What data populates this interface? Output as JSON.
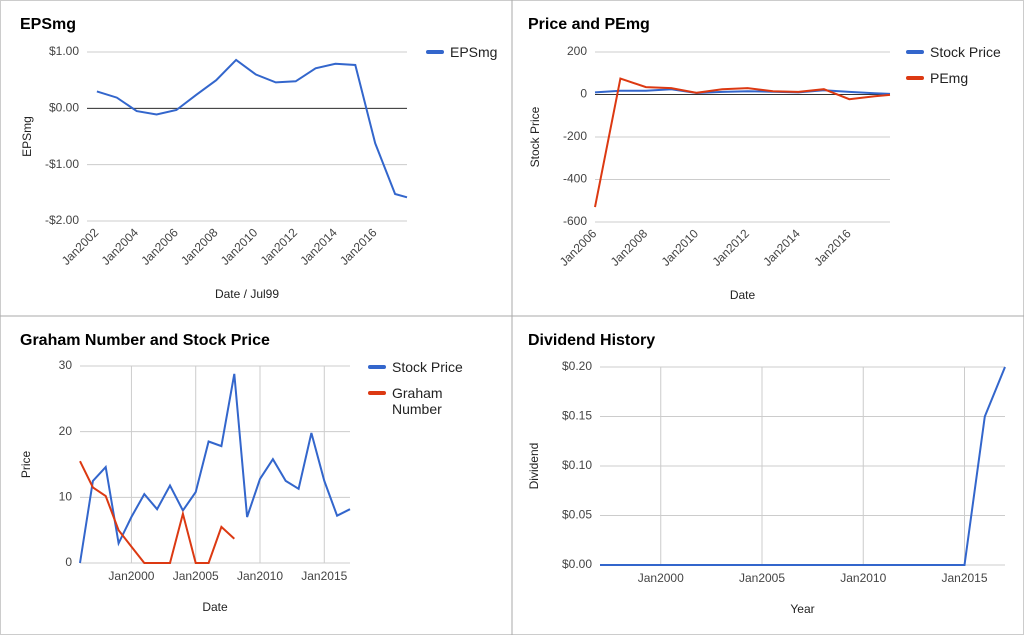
{
  "chart_data": [
    {
      "type": "line",
      "title": "EPSmg",
      "x_label": "Date / Jul99",
      "y_label": "EPSmg",
      "x": [
        2002,
        2003,
        2004,
        2005,
        2006,
        2007,
        2008,
        2009,
        2010,
        2011,
        2012,
        2013,
        2014,
        2015,
        2016,
        2017,
        2017.6
      ],
      "series": [
        {
          "name": "EPSmg",
          "color": "#3366cc",
          "values": [
            0.3,
            0.19,
            -0.05,
            -0.11,
            -0.03,
            0.24,
            0.5,
            0.86,
            0.6,
            0.46,
            0.48,
            0.71,
            0.79,
            0.77,
            -0.62,
            -1.52,
            -1.58
          ]
        }
      ],
      "xlim": [
        2001.5,
        2017.6
      ],
      "xticks": [
        {
          "value": 2002,
          "label": "Jan2002"
        },
        {
          "value": 2004,
          "label": "Jan2004"
        },
        {
          "value": 2006,
          "label": "Jan2006"
        },
        {
          "value": 2008,
          "label": "Jan2008"
        },
        {
          "value": 2010,
          "label": "Jan2010"
        },
        {
          "value": 2012,
          "label": "Jan2012"
        },
        {
          "value": 2014,
          "label": "Jan2014"
        },
        {
          "value": 2016,
          "label": "Jan2016"
        }
      ],
      "ylim": [
        -2,
        1
      ],
      "yticks": [
        {
          "value": 1,
          "label": "$1.00"
        },
        {
          "value": 0,
          "label": "$0.00"
        },
        {
          "value": -1,
          "label": "-$1.00"
        },
        {
          "value": -2,
          "label": "-$2.00"
        }
      ],
      "grid": true,
      "xgrid": false,
      "rotate_x_labels": true,
      "legend": "right"
    },
    {
      "type": "line",
      "title": "Price and PEmg",
      "x_label": "Date",
      "y_label": "Stock Price",
      "x": [
        2006,
        2007,
        2008,
        2009,
        2010,
        2011,
        2012,
        2013,
        2014,
        2015,
        2016,
        2017,
        2017.6
      ],
      "series": [
        {
          "name": "Stock Price",
          "color": "#3366cc",
          "values": [
            10,
            18,
            18,
            25,
            7,
            12,
            15,
            13,
            10,
            20,
            12,
            6,
            3
          ]
        },
        {
          "name": "PEmg",
          "color": "#dc3912",
          "values": [
            -530,
            75,
            35,
            30,
            8,
            25,
            30,
            15,
            12,
            25,
            -22,
            -8,
            -2
          ]
        }
      ],
      "xlim": [
        2006,
        2017.6
      ],
      "xticks": [
        {
          "value": 2006,
          "label": "Jan2006"
        },
        {
          "value": 2008,
          "label": "Jan2008"
        },
        {
          "value": 2010,
          "label": "Jan2010"
        },
        {
          "value": 2012,
          "label": "Jan2012"
        },
        {
          "value": 2014,
          "label": "Jan2014"
        },
        {
          "value": 2016,
          "label": "Jan2016"
        }
      ],
      "ylim": [
        -600,
        200
      ],
      "yticks": [
        200,
        0,
        -200,
        -400,
        -600
      ],
      "grid": true,
      "xgrid": false,
      "rotate_x_labels": true,
      "legend": "right"
    },
    {
      "type": "line",
      "title": "Graham Number and Stock Price",
      "x_label": "Date",
      "y_label": "Price",
      "x": [
        1996,
        1997,
        1998,
        1999,
        2000,
        2001,
        2002,
        2003,
        2004,
        2005,
        2006,
        2007,
        2008,
        2009,
        2010,
        2011,
        2012,
        2013,
        2014,
        2015,
        2016,
        2017
      ],
      "series": [
        {
          "name": "Stock Price",
          "color": "#3366cc",
          "values": [
            0,
            12.5,
            14.6,
            3,
            7,
            10.5,
            8.2,
            11.8,
            8,
            10.8,
            18.5,
            17.8,
            28.8,
            7,
            12.8,
            15.8,
            12.5,
            11.3,
            19.8,
            12.5,
            7.2,
            8.2
          ]
        },
        {
          "name": "Graham Number",
          "color": "#dc3912",
          "values": [
            15.5,
            11.5,
            10.2,
            5,
            2.5,
            0,
            0,
            0,
            7.5,
            0,
            0,
            5.5,
            3.7,
            null,
            null,
            null,
            null,
            null,
            null,
            null,
            null,
            null
          ]
        }
      ],
      "xlim": [
        1996,
        2017
      ],
      "xticks": [
        {
          "value": 2000,
          "label": "Jan2000"
        },
        {
          "value": 2005,
          "label": "Jan2005"
        },
        {
          "value": 2010,
          "label": "Jan2010"
        },
        {
          "value": 2015,
          "label": "Jan2015"
        }
      ],
      "ylim": [
        0,
        30
      ],
      "yticks": [
        0,
        10,
        20,
        30
      ],
      "grid": true,
      "xgrid": true,
      "rotate_x_labels": false,
      "legend": "right"
    },
    {
      "type": "line",
      "title": "Dividend History",
      "x_label": "Year",
      "y_label": "Dividend",
      "x": [
        1997,
        1998,
        1999,
        2000,
        2001,
        2002,
        2003,
        2004,
        2005,
        2006,
        2007,
        2008,
        2009,
        2010,
        2011,
        2012,
        2013,
        2014,
        2015,
        2016,
        2017
      ],
      "series": [
        {
          "name": "Dividend",
          "color": "#3366cc",
          "values": [
            0,
            0,
            0,
            0,
            0,
            0,
            0,
            0,
            0,
            0,
            0,
            0,
            0,
            0,
            0,
            0,
            0,
            0,
            0,
            0.15,
            0.2
          ]
        }
      ],
      "xlim": [
        1997,
        2017
      ],
      "xticks": [
        {
          "value": 2000,
          "label": "Jan2000"
        },
        {
          "value": 2005,
          "label": "Jan2005"
        },
        {
          "value": 2010,
          "label": "Jan2010"
        },
        {
          "value": 2015,
          "label": "Jan2015"
        }
      ],
      "ylim": [
        0,
        0.2
      ],
      "yticks": [
        {
          "value": 0,
          "label": "$0.00"
        },
        {
          "value": 0.05,
          "label": "$0.05"
        },
        {
          "value": 0.1,
          "label": "$0.10"
        },
        {
          "value": 0.15,
          "label": "$0.15"
        },
        {
          "value": 0.2,
          "label": "$0.20"
        }
      ],
      "grid": true,
      "xgrid": true,
      "rotate_x_labels": false,
      "legend": "none"
    }
  ]
}
